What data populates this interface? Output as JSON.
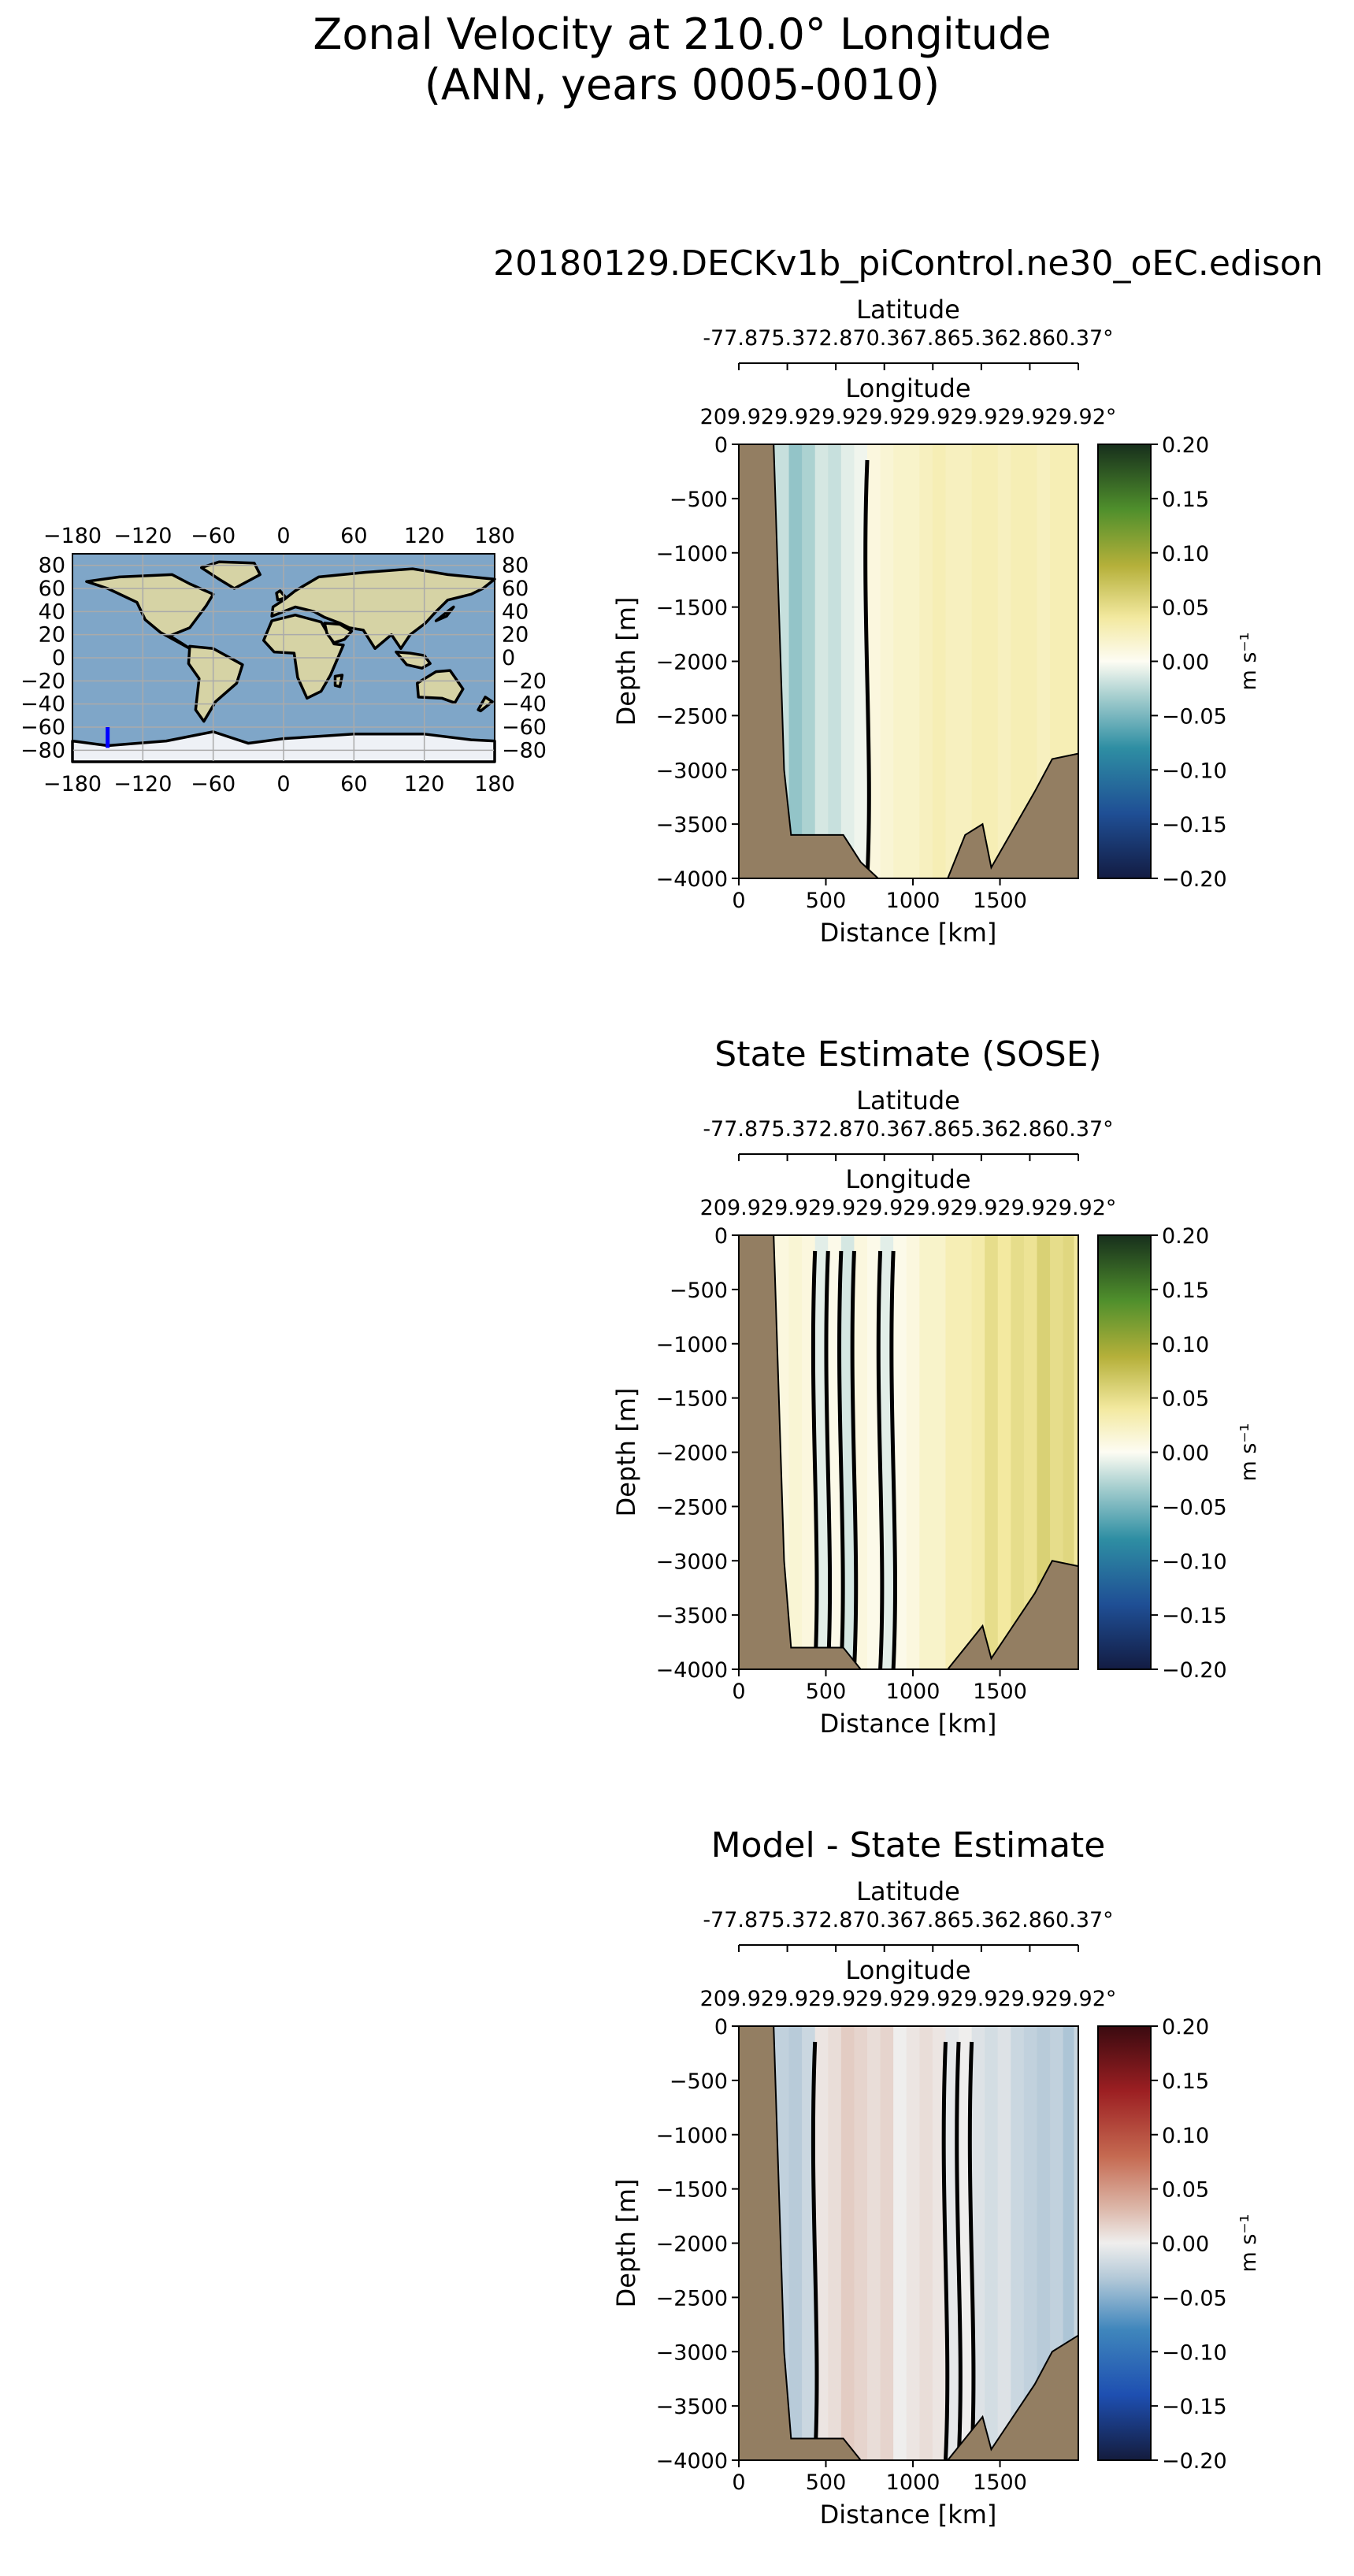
{
  "figure": {
    "title_line1": "Zonal Velocity at 210.0° Longitude",
    "title_line2": "(ANN, years 0005-0010)"
  },
  "colors": {
    "land": "#937e62",
    "map_ocean": "#7fa6c8",
    "map_land": "#d6d3a5",
    "map_ice": "#eef1f6",
    "transect": "#0000ff",
    "contour": "#000000"
  },
  "map": {
    "lon_ticks": [
      "−180",
      "−120",
      "−60",
      "0",
      "60",
      "120",
      "180"
    ],
    "lat_ticks": [
      "80",
      "60",
      "40",
      "20",
      "0",
      "−20",
      "−40",
      "−60",
      "−80"
    ],
    "transect_lon": -150,
    "transect_lat": [
      -78,
      -60
    ]
  },
  "panels": [
    {
      "title": "20180129.DECKv1b_piControl.ne30_oEC.edison",
      "latitude_label": "Latitude",
      "latitude_ticks": "-77.875.372.870.367.865.362.860.37°",
      "longitude_label": "Longitude",
      "longitude_ticks": "209.929.929.929.929.929.929.929.92°",
      "xlabel": "Distance [km]",
      "ylabel": "Depth [m]",
      "cbar_label": "m s⁻¹",
      "cmap": "speed",
      "x_ticks": [
        "0",
        "500",
        "1000",
        "1500"
      ],
      "y_ticks": [
        "0",
        "−500",
        "−1000",
        "−1500",
        "−2000",
        "−2500",
        "−3000",
        "−3500",
        "−4000"
      ],
      "cbar_ticks": [
        "0.20",
        "0.15",
        "0.10",
        "0.05",
        "0.00",
        "−0.05",
        "−0.10",
        "−0.15",
        "−0.20"
      ]
    },
    {
      "title": "State Estimate (SOSE)",
      "latitude_label": "Latitude",
      "latitude_ticks": "-77.875.372.870.367.865.362.860.37°",
      "longitude_label": "Longitude",
      "longitude_ticks": "209.929.929.929.929.929.929.929.92°",
      "xlabel": "Distance [km]",
      "ylabel": "Depth [m]",
      "cbar_label": "m s⁻¹",
      "cmap": "speed",
      "x_ticks": [
        "0",
        "500",
        "1000",
        "1500"
      ],
      "y_ticks": [
        "0",
        "−500",
        "−1000",
        "−1500",
        "−2000",
        "−2500",
        "−3000",
        "−3500",
        "−4000"
      ],
      "cbar_ticks": [
        "0.20",
        "0.15",
        "0.10",
        "0.05",
        "0.00",
        "−0.05",
        "−0.10",
        "−0.15",
        "−0.20"
      ]
    },
    {
      "title": "Model - State Estimate",
      "latitude_label": "Latitude",
      "latitude_ticks": "-77.875.372.870.367.865.362.860.37°",
      "longitude_label": "Longitude",
      "longitude_ticks": "209.929.929.929.929.929.929.929.92°",
      "xlabel": "Distance [km]",
      "ylabel": "Depth [m]",
      "cbar_label": "m s⁻¹",
      "cmap": "diff",
      "x_ticks": [
        "0",
        "500",
        "1000",
        "1500"
      ],
      "y_ticks": [
        "0",
        "−500",
        "−1000",
        "−1500",
        "−2000",
        "−2500",
        "−3000",
        "−3500",
        "−4000"
      ],
      "cbar_ticks": [
        "0.20",
        "0.15",
        "0.10",
        "0.05",
        "0.00",
        "−0.05",
        "−0.10",
        "−0.15",
        "−0.20"
      ]
    }
  ],
  "chart_data": [
    {
      "type": "heatmap",
      "title": "20180129.DECKv1b_piControl.ne30_oEC.edison",
      "xlabel": "Distance [km]",
      "ylabel": "Depth [m]",
      "xlim": [
        0,
        1950
      ],
      "ylim": [
        -4000,
        0
      ],
      "clim": [
        -0.2,
        0.2
      ],
      "colorbar_label": "m s⁻¹",
      "column_distance_km": [
        250,
        325,
        400,
        475,
        550,
        625,
        700,
        775,
        850,
        925,
        1000,
        1075,
        1150,
        1225,
        1300,
        1375,
        1450,
        1525,
        1600,
        1675,
        1750,
        1825,
        1900,
        1950
      ],
      "column_velocity": [
        -0.02,
        -0.04,
        -0.03,
        -0.015,
        -0.02,
        -0.01,
        -0.005,
        0.01,
        0.015,
        0.02,
        0.02,
        0.025,
        0.03,
        0.025,
        0.025,
        0.03,
        0.03,
        0.025,
        0.03,
        0.03,
        0.025,
        0.03,
        0.03,
        0.03
      ],
      "bottom_depth_profile": {
        "distance_km": [
          0,
          200,
          260,
          300,
          600,
          700,
          800,
          1000,
          1200,
          1300,
          1400,
          1450,
          1700,
          1800,
          1950
        ],
        "depth_m": [
          0,
          0,
          -3000,
          -3600,
          -3600,
          -3850,
          -4000,
          -4000,
          -4000,
          -3600,
          -3500,
          -3900,
          -3200,
          -2900,
          -2850
        ]
      }
    },
    {
      "type": "heatmap",
      "title": "State Estimate (SOSE)",
      "xlabel": "Distance [km]",
      "ylabel": "Depth [m]",
      "xlim": [
        0,
        1950
      ],
      "ylim": [
        -4000,
        0
      ],
      "clim": [
        -0.2,
        0.2
      ],
      "colorbar_label": "m s⁻¹",
      "column_distance_km": [
        250,
        325,
        400,
        475,
        550,
        625,
        700,
        775,
        850,
        925,
        1000,
        1075,
        1150,
        1225,
        1300,
        1375,
        1450,
        1525,
        1600,
        1675,
        1750,
        1825,
        1900,
        1950
      ],
      "column_velocity": [
        0.01,
        0.015,
        0.01,
        -0.01,
        0.005,
        -0.015,
        0.01,
        0.005,
        -0.01,
        0.005,
        0.01,
        0.02,
        0.02,
        0.03,
        0.03,
        0.035,
        0.05,
        0.04,
        0.05,
        0.045,
        0.06,
        0.05,
        0.055,
        0.04
      ],
      "bottom_depth_profile": {
        "distance_km": [
          0,
          200,
          260,
          300,
          600,
          700,
          800,
          1000,
          1200,
          1300,
          1400,
          1450,
          1700,
          1800,
          1950
        ],
        "depth_m": [
          0,
          0,
          -3000,
          -3800,
          -3800,
          -4000,
          -4000,
          -4000,
          -4000,
          -3800,
          -3600,
          -3900,
          -3300,
          -3000,
          -3050
        ]
      }
    },
    {
      "type": "heatmap",
      "title": "Model - State Estimate",
      "xlabel": "Distance [km]",
      "ylabel": "Depth [m]",
      "xlim": [
        0,
        1950
      ],
      "ylim": [
        -4000,
        0
      ],
      "clim": [
        -0.2,
        0.2
      ],
      "colorbar_label": "m s⁻¹",
      "column_distance_km": [
        250,
        325,
        400,
        475,
        550,
        625,
        700,
        775,
        850,
        925,
        1000,
        1075,
        1150,
        1225,
        1300,
        1375,
        1450,
        1525,
        1600,
        1675,
        1750,
        1825,
        1900,
        1950
      ],
      "column_velocity": [
        -0.025,
        -0.03,
        -0.02,
        0.005,
        0.01,
        0.02,
        0.015,
        0.01,
        0.015,
        0.0,
        0.005,
        0.01,
        0.005,
        -0.005,
        0.0,
        -0.01,
        -0.015,
        -0.01,
        -0.02,
        -0.025,
        -0.03,
        -0.025,
        -0.035,
        -0.02
      ],
      "bottom_depth_profile": {
        "distance_km": [
          0,
          200,
          260,
          300,
          600,
          700,
          800,
          1000,
          1200,
          1300,
          1400,
          1450,
          1700,
          1800,
          1950
        ],
        "depth_m": [
          0,
          0,
          -3000,
          -3800,
          -3800,
          -4000,
          -4000,
          -4000,
          -4000,
          -3800,
          -3600,
          -3900,
          -3300,
          -3000,
          -2850
        ]
      }
    }
  ]
}
